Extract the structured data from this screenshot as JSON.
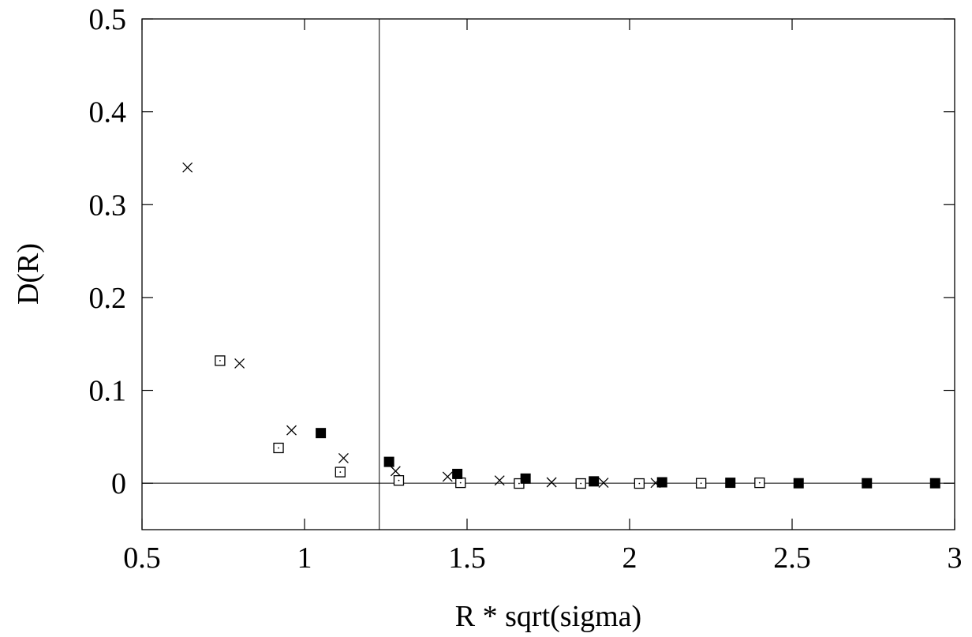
{
  "chart_data": {
    "type": "scatter",
    "title": "",
    "xlabel": "R * sqrt(sigma)",
    "ylabel": "D(R)",
    "xlim": [
      0.5,
      3
    ],
    "ylim": [
      -0.05,
      0.5
    ],
    "xticks": [
      "0.5",
      "1",
      "1.5",
      "2",
      "2.5",
      "3"
    ],
    "yticks": [
      "0",
      "0.1",
      "0.2",
      "0.3",
      "0.4",
      "0.5"
    ],
    "grid": false,
    "legend": "none",
    "reference_lines": {
      "horizontal_y": 0,
      "vertical_x": 1.23
    },
    "series": [
      {
        "marker": "cross",
        "points": [
          [
            0.64,
            0.34
          ],
          [
            0.8,
            0.129
          ],
          [
            0.96,
            0.057
          ],
          [
            1.12,
            0.027
          ],
          [
            1.28,
            0.013
          ],
          [
            1.44,
            0.007
          ],
          [
            1.6,
            0.003
          ],
          [
            1.76,
            0.001
          ],
          [
            1.92,
            0.0005
          ],
          [
            2.08,
            0.0003
          ]
        ]
      },
      {
        "marker": "open-square",
        "points": [
          [
            0.74,
            0.132
          ],
          [
            0.92,
            0.038
          ],
          [
            1.11,
            0.012
          ],
          [
            1.29,
            0.003
          ],
          [
            1.48,
            0.0005
          ],
          [
            1.66,
            -0.0003
          ],
          [
            1.85,
            -0.0003
          ],
          [
            2.03,
            -0.0003
          ],
          [
            2.22,
            0.0
          ],
          [
            2.4,
            0.0005
          ]
        ]
      },
      {
        "marker": "filled-square",
        "points": [
          [
            1.05,
            0.054
          ],
          [
            1.26,
            0.023
          ],
          [
            1.47,
            0.01
          ],
          [
            1.68,
            0.005
          ],
          [
            1.89,
            0.002
          ],
          [
            2.1,
            0.001
          ],
          [
            2.31,
            0.0005
          ],
          [
            2.52,
            0.0
          ],
          [
            2.73,
            0.0
          ],
          [
            2.94,
            0.0
          ]
        ]
      }
    ]
  }
}
